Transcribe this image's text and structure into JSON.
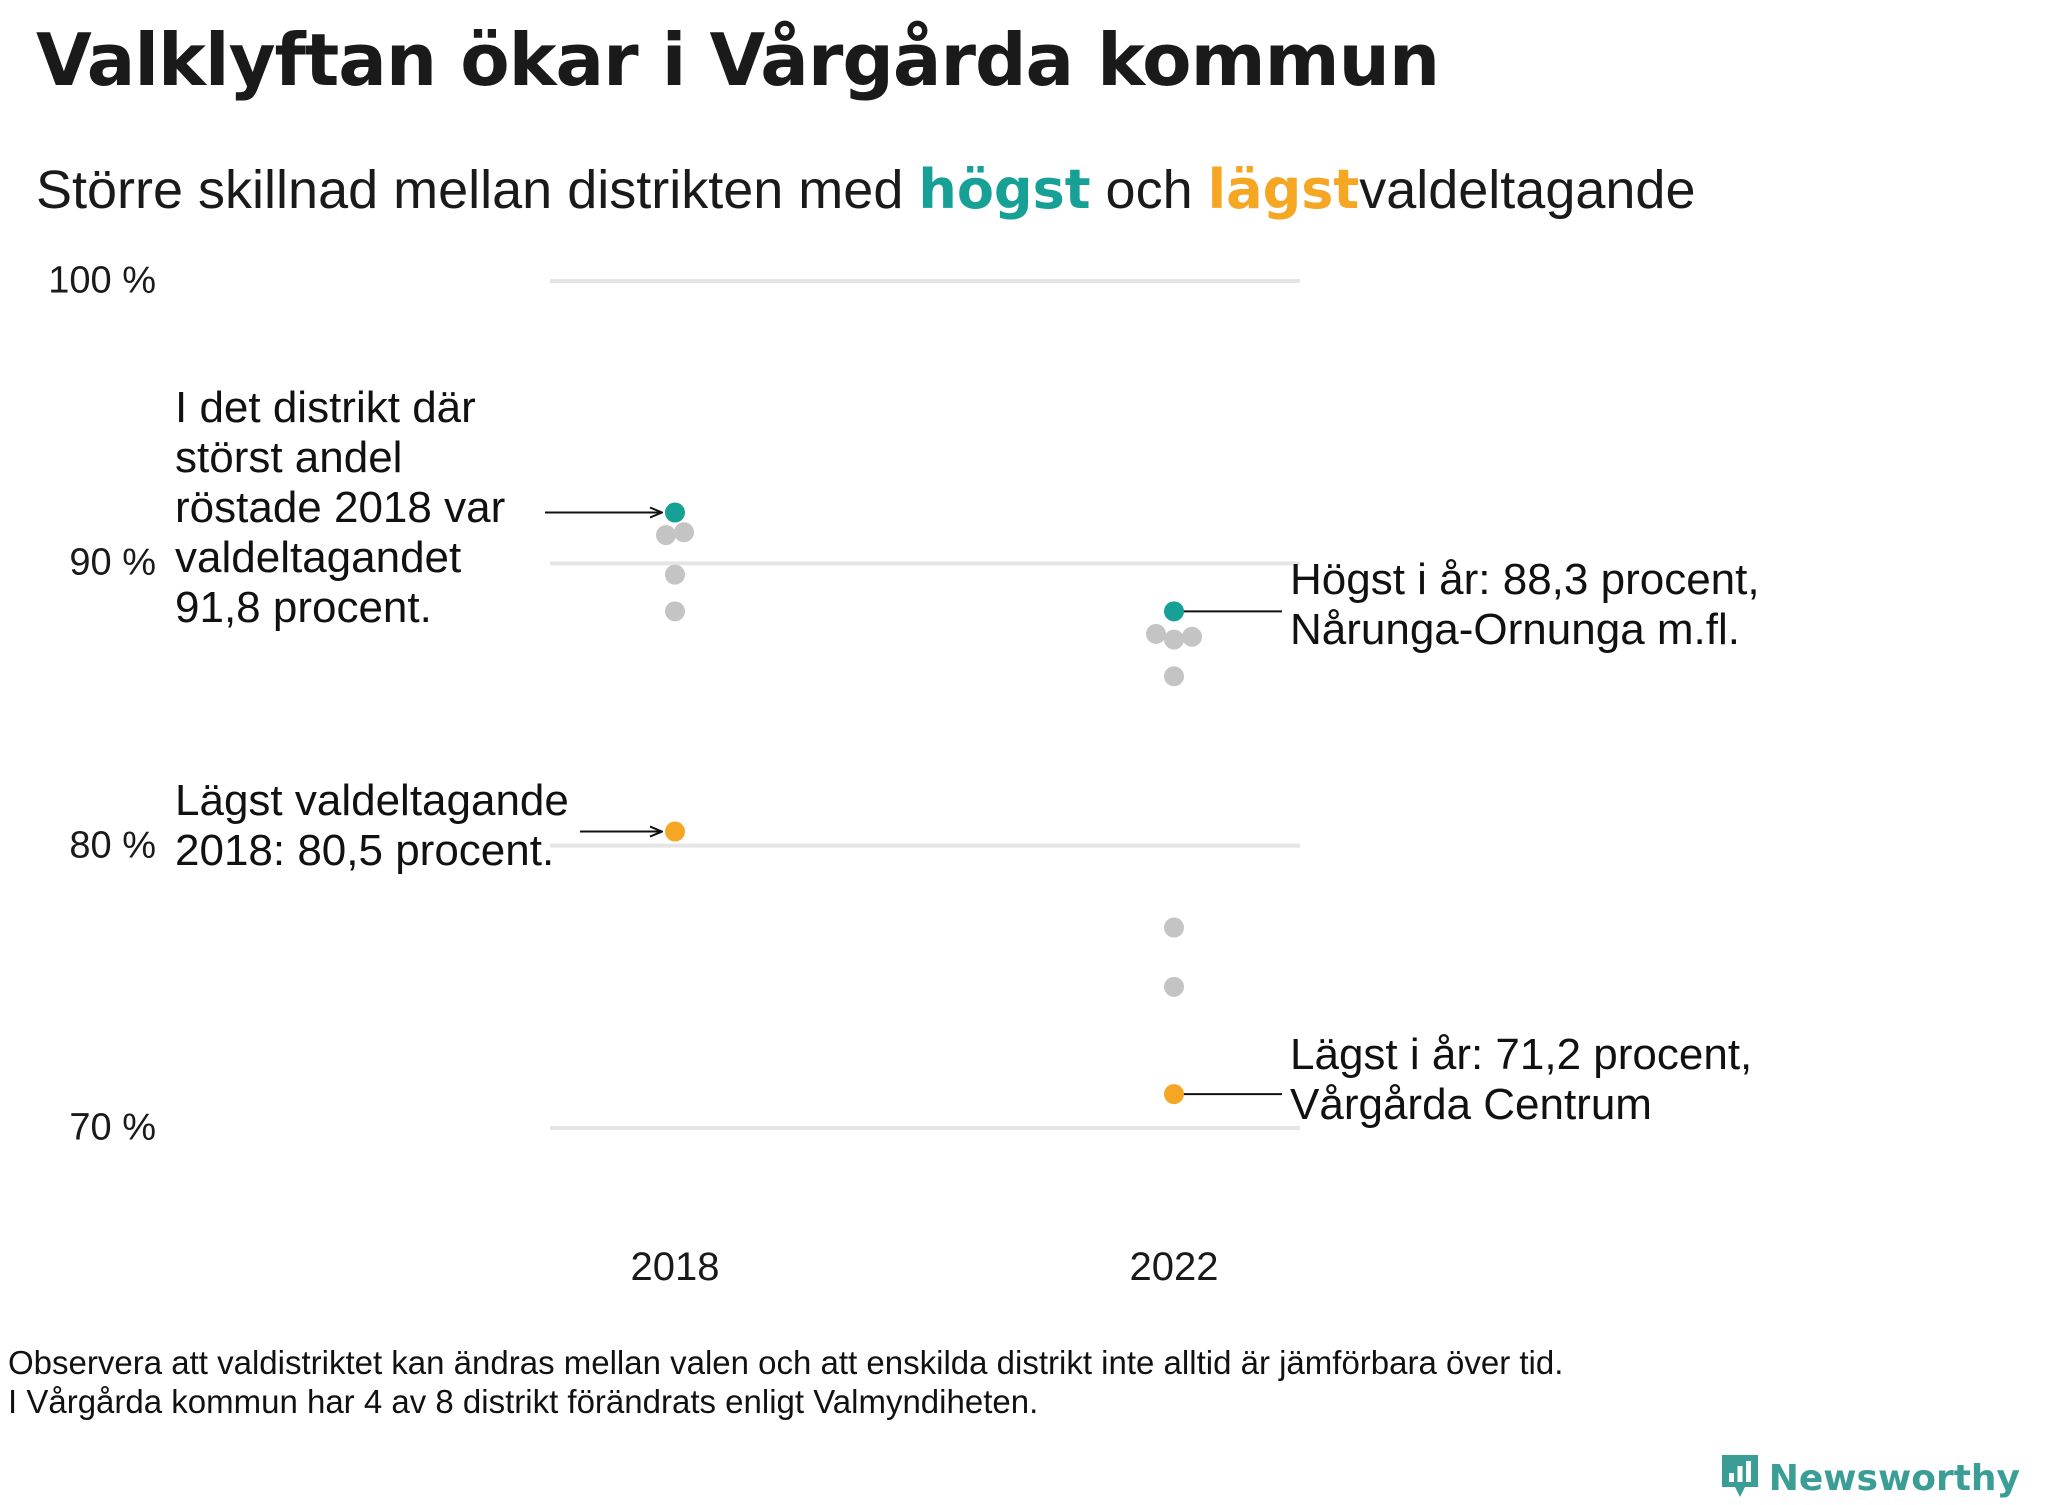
{
  "title": "Valklyftan ökar i Vårgårda kommun",
  "subtitle": {
    "part1": "Större skillnad mellan distrikten med",
    "highest": "högst",
    "and": "och",
    "lowest": "lägst",
    "part2": "valdeltagande"
  },
  "colors": {
    "highest": "#16a096",
    "lowest": "#f5a623",
    "other": "#c4c4c4",
    "grid": "#e5e5e5"
  },
  "chart_data": {
    "type": "scatter",
    "categories": [
      "2018",
      "2022"
    ],
    "ylim": [
      70,
      100
    ],
    "y_ticks": [
      100,
      90,
      80,
      70
    ],
    "y_tick_labels": [
      "100 %",
      "90 %",
      "80 %",
      "70 %"
    ],
    "grid": true,
    "series": [
      {
        "x": "2018",
        "role": "highest",
        "values": [
          91.8
        ]
      },
      {
        "x": "2018",
        "role": "other",
        "values": [
          91.0,
          91.1,
          89.6,
          88.3
        ]
      },
      {
        "x": "2018",
        "role": "lowest",
        "values": [
          80.5
        ]
      },
      {
        "x": "2022",
        "role": "highest",
        "values": [
          88.3
        ]
      },
      {
        "x": "2022",
        "role": "other",
        "values": [
          87.5,
          87.3,
          87.4,
          86.0,
          77.1,
          75.0
        ]
      },
      {
        "x": "2022",
        "role": "lowest",
        "values": [
          71.2
        ]
      }
    ],
    "annotations": [
      {
        "text": "I det distrikt där\nstörst andel\nröstade 2018 var\nvaldeltagandet\n91,8 procent.",
        "x": "2018",
        "y": 91.8,
        "side": "left"
      },
      {
        "text": "Lägst valdeltagande\n2018: 80,5 procent.",
        "x": "2018",
        "y": 80.5,
        "side": "left"
      },
      {
        "text": "Högst i år: 88,3 procent,\nNårunga-Ornunga m.fl.",
        "x": "2022",
        "y": 88.3,
        "side": "right"
      },
      {
        "text": "Lägst i år: 71,2 procent,\nVårgårda Centrum",
        "x": "2022",
        "y": 71.2,
        "side": "right"
      }
    ]
  },
  "footnote": "Observera att valdistriktet kan ändras mellan valen och att enskilda distrikt inte alltid är jämförbara över tid.\nI Vårgårda kommun har 4 av 8 distrikt förändrats enligt Valmyndiheten.",
  "brand": {
    "name": "Newsworthy",
    "icon": "bar-chart-logo-icon"
  }
}
